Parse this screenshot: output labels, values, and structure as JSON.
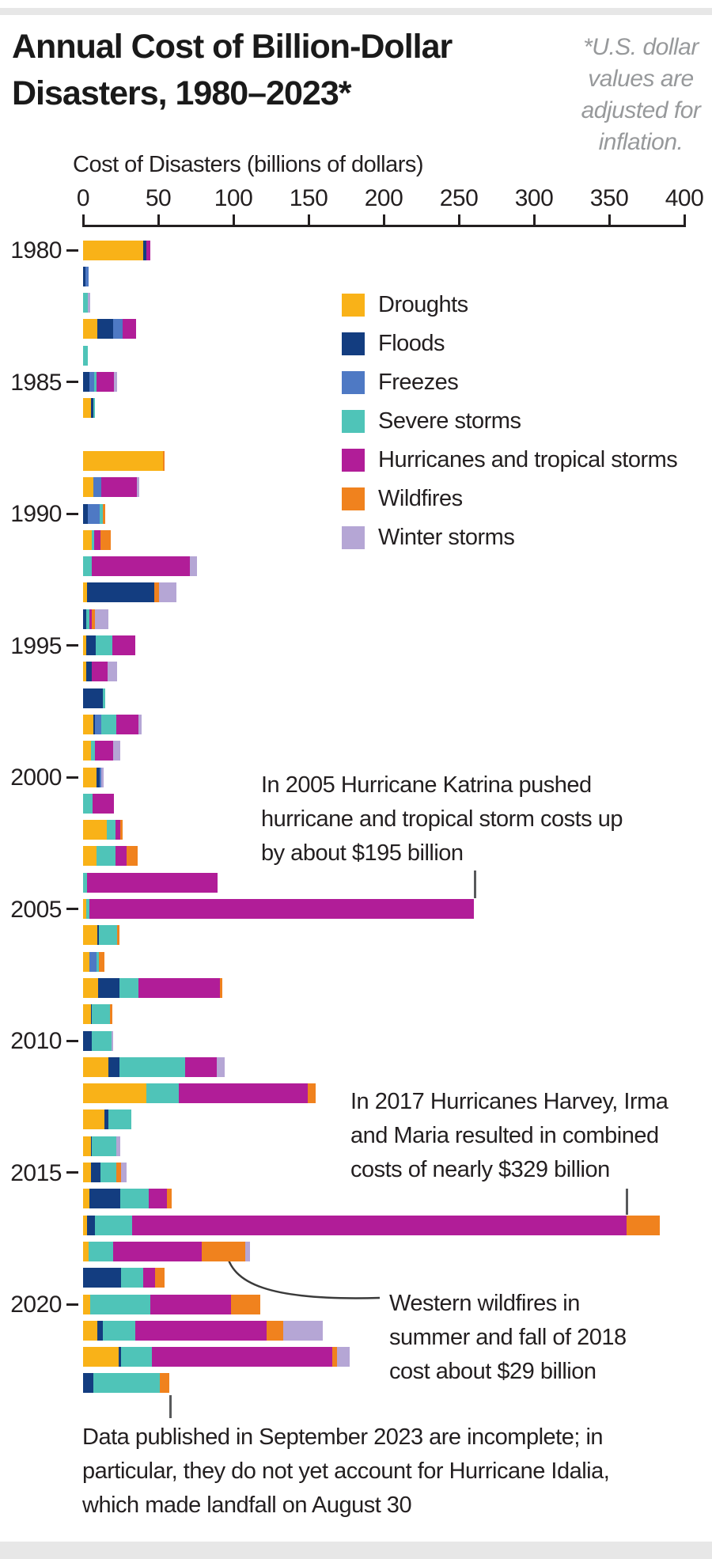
{
  "header": {
    "title": "Annual Cost of Billion-Dollar\nDisasters, 1980–2023*",
    "footnote": "*U.S. dollar\nvalues are\nadjusted for\ninflation."
  },
  "annotations": {
    "katrina": "In 2005 Hurricane Katrina pushed\nhurricane and tropical storm costs up\nby about $195 billion",
    "harvey_irma_maria": "In 2017 Hurricanes Harvey, Irma\nand Maria resulted in combined\ncosts of nearly $329 billion",
    "wildfires_2018": "Western wildfires in\nsummer and fall of 2018\ncost about $29 billion",
    "incomplete_2023": "Data published in September 2023 are incomplete; in\nparticular, they do not yet account for Hurricane Idalia,\nwhich made landfall on August 30"
  },
  "chart_data": {
    "type": "bar",
    "orientation": "horizontal",
    "stacked": true,
    "title": "Annual Cost of Billion-Dollar Disasters, 1980–2023*",
    "xlabel": "Cost of Disasters (billions of dollars)",
    "xlim": [
      0,
      400
    ],
    "x_ticks": [
      0,
      50,
      100,
      150,
      200,
      250,
      300,
      350,
      400
    ],
    "year_axis_labels": [
      1980,
      1985,
      1990,
      1995,
      2000,
      2005,
      2010,
      2015,
      2020
    ],
    "categories": [
      1980,
      1981,
      1982,
      1983,
      1984,
      1985,
      1986,
      1987,
      1988,
      1989,
      1990,
      1991,
      1992,
      1993,
      1994,
      1995,
      1996,
      1997,
      1998,
      1999,
      2000,
      2001,
      2002,
      2003,
      2004,
      2005,
      2006,
      2007,
      2008,
      2009,
      2010,
      2011,
      2012,
      2013,
      2014,
      2015,
      2016,
      2017,
      2018,
      2019,
      2020,
      2021,
      2022,
      2023
    ],
    "units": "billions of U.S. dollars",
    "legend_position": "upper middle",
    "series": [
      {
        "name": "Droughts",
        "color": "#F9B218",
        "values": [
          40,
          0,
          0,
          9.5,
          0,
          0,
          5.5,
          0,
          53,
          7,
          0,
          6,
          0,
          2.5,
          0,
          2,
          2,
          0,
          7,
          5,
          9,
          0,
          16,
          9,
          0,
          2,
          9.5,
          4,
          10,
          5,
          0,
          17,
          42,
          14,
          5,
          5,
          4,
          2.5,
          3.5,
          0,
          4.5,
          9.5,
          23.5,
          0
        ]
      },
      {
        "name": "Floods",
        "color": "#133D80",
        "values": [
          2,
          1.5,
          0,
          10.5,
          0,
          4,
          1.5,
          0,
          0,
          0,
          3,
          0,
          0,
          45,
          2,
          6.5,
          4,
          13,
          1,
          0,
          2,
          0,
          0,
          0,
          0,
          0,
          1,
          0,
          14,
          1,
          6,
          7,
          0,
          3,
          1,
          6.5,
          20.5,
          5.5,
          0,
          25,
          0,
          3.5,
          2,
          7
        ]
      },
      {
        "name": "Freezes",
        "color": "#4E79C4",
        "values": [
          0,
          2,
          0,
          6.5,
          0,
          3.5,
          0,
          0,
          0,
          5,
          8,
          0,
          0,
          0,
          0,
          0,
          0,
          0,
          4,
          0,
          1,
          0,
          0,
          0,
          0,
          0,
          0,
          5,
          0,
          0,
          0,
          0,
          0,
          0,
          0,
          0,
          0,
          0,
          0,
          0,
          0,
          0,
          0,
          0
        ]
      },
      {
        "name": "Severe storms",
        "color": "#4FC4B8",
        "values": [
          0,
          0,
          3,
          0,
          3,
          1.5,
          1,
          0,
          0,
          0,
          2,
          1.5,
          6,
          0,
          2,
          11,
          0,
          2,
          10,
          3,
          0,
          6.5,
          5.5,
          12.5,
          2.5,
          2,
          12,
          1.5,
          13,
          12,
          13,
          44,
          21.5,
          15,
          16,
          10.5,
          19,
          24.5,
          16.5,
          15,
          40,
          22,
          20.5,
          44
        ]
      },
      {
        "name": "Hurricanes and tropical storms",
        "color": "#B11D98",
        "values": [
          3,
          0,
          0,
          9,
          0,
          11.5,
          0,
          0,
          0,
          24,
          0,
          4,
          65,
          0,
          2,
          15.5,
          10.5,
          0,
          15,
          12,
          0,
          14,
          3,
          7.5,
          87,
          256,
          0,
          0,
          54,
          0,
          0,
          21,
          86,
          0,
          0,
          0,
          12.5,
          329,
          59,
          8,
          54,
          87,
          120,
          0
        ]
      },
      {
        "name": "Wildfires",
        "color": "#F0821E",
        "values": [
          0,
          0,
          0,
          0,
          0,
          0,
          0,
          0,
          1,
          0,
          1.5,
          7,
          0,
          3,
          2,
          0,
          0,
          0,
          0,
          0,
          0,
          0,
          2,
          7.5,
          0,
          0,
          1.5,
          3.5,
          1.5,
          1.5,
          0,
          0,
          5,
          0,
          0,
          3.5,
          3,
          22,
          29,
          6,
          19.5,
          11,
          3,
          6.5
        ]
      },
      {
        "name": "Winter storms",
        "color": "#B5A6D5",
        "values": [
          0,
          0,
          1.5,
          0,
          0,
          2,
          0,
          0,
          0,
          1.5,
          0,
          0,
          5,
          11.5,
          9,
          0,
          6,
          0,
          2,
          4.5,
          1.5,
          0,
          0,
          0,
          0,
          0,
          0,
          0,
          0,
          0,
          1,
          5,
          0,
          0,
          2.5,
          3.5,
          0,
          0,
          3,
          0,
          0,
          26.5,
          8.5,
          0
        ]
      }
    ]
  }
}
